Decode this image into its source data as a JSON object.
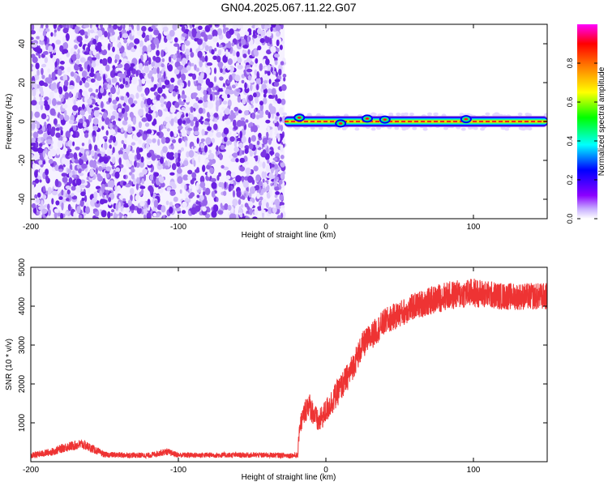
{
  "title": "GN04.2025.067.11.22.G07",
  "chart_data": [
    {
      "type": "heatmap",
      "xlabel": "Height of straight line (km)",
      "ylabel": "Frequency (Hz)",
      "xlim": [
        -200,
        150
      ],
      "ylim": [
        -50,
        50
      ],
      "x_ticks": [
        -200,
        -100,
        0,
        100
      ],
      "y_ticks": [
        -40,
        -20,
        0,
        20,
        40
      ],
      "noise_region_x": [
        -200,
        -28
      ],
      "signal_band": {
        "x_range": [
          -28,
          150
        ],
        "frequency_center": 0,
        "frequency_halfwidth": 2,
        "bumps": [
          {
            "x": -18,
            "f": 2
          },
          {
            "x": 10,
            "f": -1
          },
          {
            "x": 28,
            "f": 1.5
          },
          {
            "x": 40,
            "f": 1
          },
          {
            "x": 95,
            "f": 1.2
          }
        ]
      },
      "colorbar": {
        "label": "Normalized spectral amplitude",
        "range": [
          0,
          1
        ],
        "ticks": [
          "0.0",
          "0.2",
          "0.4",
          "0.6",
          "0.8"
        ],
        "colors": [
          "#ffffff",
          "#8b00ff",
          "#0000ff",
          "#00ffff",
          "#00ff00",
          "#ffff00",
          "#ff8000",
          "#ff0000",
          "#ff00ff"
        ]
      },
      "grid": false
    },
    {
      "type": "line",
      "xlabel": "Height of straight line (km)",
      "ylabel": "SNR (10 * v/v)",
      "xlim": [
        -200,
        150
      ],
      "ylim": [
        0,
        5000
      ],
      "x_ticks": [
        -200,
        -100,
        0,
        100
      ],
      "y_ticks": [
        1000,
        2000,
        3000,
        4000,
        5000
      ],
      "series": [
        {
          "color": "#ee3333",
          "profile": [
            {
              "x": -200,
              "y": 150,
              "spread": 160
            },
            {
              "x": -185,
              "y": 260,
              "spread": 200
            },
            {
              "x": -176,
              "y": 380,
              "spread": 240
            },
            {
              "x": -165,
              "y": 450,
              "spread": 260
            },
            {
              "x": -158,
              "y": 330,
              "spread": 220
            },
            {
              "x": -150,
              "y": 180,
              "spread": 150
            },
            {
              "x": -120,
              "y": 160,
              "spread": 140
            },
            {
              "x": -108,
              "y": 260,
              "spread": 180
            },
            {
              "x": -100,
              "y": 170,
              "spread": 140
            },
            {
              "x": -40,
              "y": 170,
              "spread": 140
            },
            {
              "x": -19,
              "y": 160,
              "spread": 140
            },
            {
              "x": -18,
              "y": 900,
              "spread": 500
            },
            {
              "x": -12,
              "y": 1500,
              "spread": 700
            },
            {
              "x": -5,
              "y": 1000,
              "spread": 600
            },
            {
              "x": 5,
              "y": 1600,
              "spread": 700
            },
            {
              "x": 15,
              "y": 2200,
              "spread": 700
            },
            {
              "x": 25,
              "y": 3000,
              "spread": 700
            },
            {
              "x": 40,
              "y": 3600,
              "spread": 700
            },
            {
              "x": 60,
              "y": 4000,
              "spread": 700
            },
            {
              "x": 80,
              "y": 4250,
              "spread": 750
            },
            {
              "x": 100,
              "y": 4350,
              "spread": 750
            },
            {
              "x": 120,
              "y": 4250,
              "spread": 700
            },
            {
              "x": 150,
              "y": 4250,
              "spread": 700
            }
          ]
        }
      ],
      "grid": false
    }
  ]
}
